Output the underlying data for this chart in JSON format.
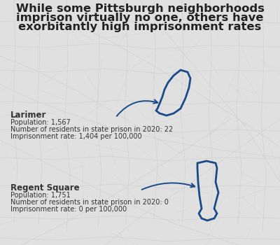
{
  "title_line1": "While some Pittsburgh neighborhoods",
  "title_line2": "imprison virtually no one, others have",
  "title_line3": "exorbitantly high imprisonment rates",
  "title_fontsize": 11.8,
  "title_color": "#222222",
  "background_color": "#e0e0e0",
  "neighborhood1_name": "Larimer",
  "neighborhood1_population": "Population: 1,567",
  "neighborhood1_prison": "Number of residents in state prison in 2020: 22",
  "neighborhood1_rate": "Imprisonment rate: 1,404 per 100,000",
  "neighborhood2_name": "Regent Square",
  "neighborhood2_population": "Population: 1,751",
  "neighborhood2_prison": "Number of residents in state prison in 2020: 0",
  "neighborhood2_rate": "Imprisonment rate: 0 per 100,000",
  "shape_color": "#1a4a8a",
  "text_color": "#333333",
  "label_bold_size": 8.5,
  "label_regular_size": 7.0,
  "map_line_color": "#cccccc",
  "fig_width": 4.0,
  "fig_height": 3.5,
  "dpi": 100
}
